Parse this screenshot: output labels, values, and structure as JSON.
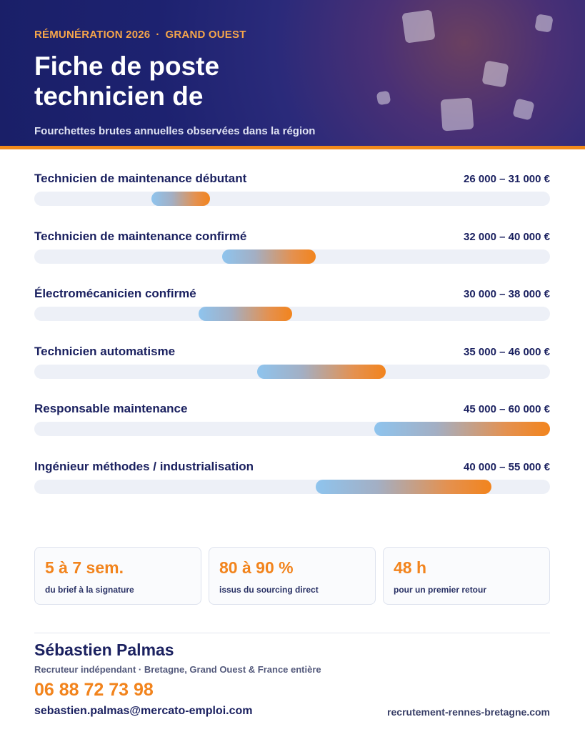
{
  "header": {
    "eyebrow_left": "RÉMUNÉRATION 2026",
    "eyebrow_separator": "·",
    "eyebrow_right": "GRAND OUEST",
    "title": "Fiche de poste technicien de",
    "subtitle": "Fourchettes brutes annuelles observées dans la région",
    "colors": {
      "background": "#1d2270",
      "accent": "#f28a1a",
      "eyebrow": "#f5a54a"
    }
  },
  "chart_data": {
    "type": "bar",
    "scale_min": 16000,
    "scale_max": 60000,
    "categories": [
      "Technicien de maintenance débutant",
      "Technicien de maintenance confirmé",
      "Électromécanicien confirmé",
      "Technicien automatisme",
      "Responsable maintenance",
      "Ingénieur méthodes / industrialisation"
    ],
    "ranges": [
      {
        "label": "Technicien de maintenance débutant",
        "min": 26000,
        "max": 31000,
        "range_text": "26 000 – 31 000 €"
      },
      {
        "label": "Technicien de maintenance confirmé",
        "min": 32000,
        "max": 40000,
        "range_text": "32 000 – 40 000 €"
      },
      {
        "label": "Électromécanicien confirmé",
        "min": 30000,
        "max": 38000,
        "range_text": "30 000 – 38 000 €"
      },
      {
        "label": "Technicien automatisme",
        "min": 35000,
        "max": 46000,
        "range_text": "35 000 – 46 000 €"
      },
      {
        "label": "Responsable maintenance",
        "min": 45000,
        "max": 60000,
        "range_text": "45 000 – 60 000 €"
      },
      {
        "label": "Ingénieur méthodes / industrialisation",
        "min": 40000,
        "max": 55000,
        "range_text": "40 000 – 55 000 €"
      }
    ],
    "colors": {
      "track": "#edf0f7",
      "gradient_start": "#8ec4ee",
      "gradient_end": "#f2841d"
    }
  },
  "stats": [
    {
      "value": "5 à 7 sem.",
      "caption": "du brief à la signature"
    },
    {
      "value": "80 à 90 %",
      "caption": "issus du sourcing direct"
    },
    {
      "value": "48 h",
      "caption": "pour un premier retour"
    }
  ],
  "contact": {
    "name": "Sébastien Palmas",
    "role": "Recruteur indépendant · Bretagne, Grand Ouest & France entière",
    "phone": "06 88 72 73 98",
    "email": "sebastien.palmas@mercato-emploi.com",
    "website": "recrutement-rennes-bretagne.com"
  }
}
